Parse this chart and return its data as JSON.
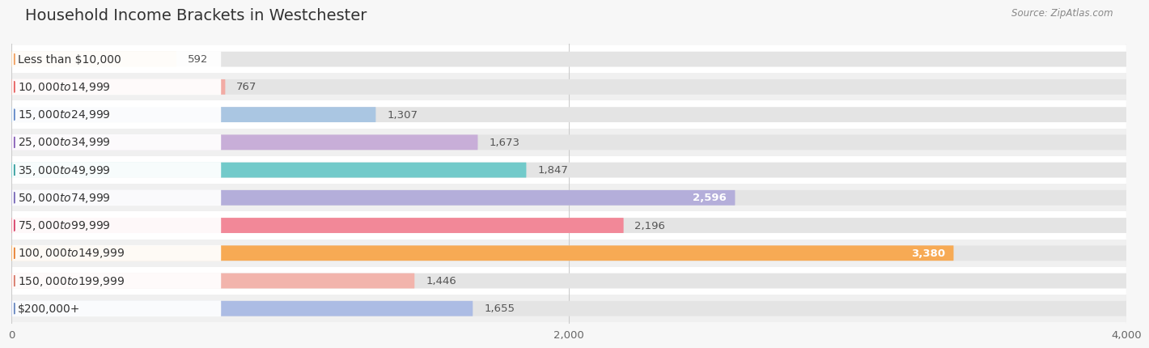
{
  "title": "Household Income Brackets in Westchester",
  "source": "Source: ZipAtlas.com",
  "categories": [
    "Less than $10,000",
    "$10,000 to $14,999",
    "$15,000 to $24,999",
    "$25,000 to $34,999",
    "$35,000 to $49,999",
    "$50,000 to $74,999",
    "$75,000 to $99,999",
    "$100,000 to $149,999",
    "$150,000 to $199,999",
    "$200,000+"
  ],
  "values": [
    592,
    767,
    1307,
    1673,
    1847,
    2596,
    2196,
    3380,
    1446,
    1655
  ],
  "bar_colors": [
    "#f7cfa0",
    "#f2aba4",
    "#aac6e2",
    "#c8aed8",
    "#72caca",
    "#b4aeda",
    "#f28898",
    "#f7aa54",
    "#f2b4ac",
    "#acbce4"
  ],
  "label_circle_colors": [
    "#f0a060",
    "#e86060",
    "#6088c8",
    "#8860b8",
    "#38a0a0",
    "#7868b8",
    "#d84068",
    "#e88030",
    "#d87868",
    "#6888c0"
  ],
  "bg_color": "#f7f7f7",
  "bar_bg_color": "#e4e4e4",
  "row_bg_color": "#f0f0f0",
  "xlim": [
    0,
    4000
  ],
  "xticks": [
    0,
    2000,
    4000
  ],
  "title_fontsize": 14,
  "label_fontsize": 10,
  "value_fontsize": 9.5
}
